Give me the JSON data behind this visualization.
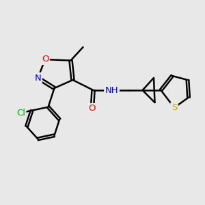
{
  "bg_color": "#e8e8e8",
  "bond_color": "#000000",
  "bond_width": 1.8,
  "atom_colors": {
    "O": "#ff0000",
    "N": "#0000ff",
    "S": "#bbaa00",
    "Cl": "#00aa00",
    "H": "#555555",
    "C": "#000000"
  },
  "font_size": 9.5
}
